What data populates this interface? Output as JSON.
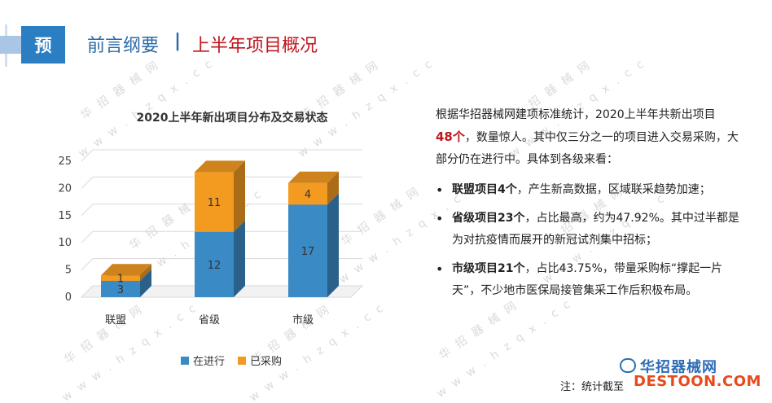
{
  "header": {
    "badge": "预",
    "section": "前言纲要",
    "separator": "|",
    "title": "上半年项目概况"
  },
  "chart_data": {
    "type": "bar",
    "stacked": true,
    "title": "2020上半年新出项目分布及交易状态",
    "categories": [
      "联盟",
      "省级",
      "市级"
    ],
    "series": [
      {
        "name": "在进行",
        "values": [
          3,
          12,
          17
        ],
        "color": "#3a8ac6"
      },
      {
        "name": "已采购",
        "values": [
          1,
          11,
          4
        ],
        "color": "#f39a21"
      }
    ],
    "y_ticks": [
      "0",
      "5",
      "10",
      "15",
      "20",
      "25"
    ],
    "ylim": [
      0,
      25
    ],
    "grid": true,
    "legend": "bottom"
  },
  "text": {
    "intro_a": "根据华招器械网建项标准统计，2020上半年共新出项目",
    "intro_highlight": "48个",
    "intro_b": "，数量惊人。其中仅三分之一的项目进入交易采购，大部分仍在进行中。具体到各级来看：",
    "items": [
      {
        "bold": "联盟项目4个",
        "rest": "，产生新高数据，区域联采趋势加速；"
      },
      {
        "bold": "省级项目23个",
        "rest": "，占比最高，约为47.92%。其中过半都是为对抗疫情而展开的新冠试剂集中招标；"
      },
      {
        "bold": "市级项目21个",
        "rest": "，占比43.75%，带量采购标“撑起一片天”，不少地市医保局接管集采工作后积极布局。"
      }
    ],
    "note": "注：统计截至"
  },
  "brand": {
    "cn": "华招器械网",
    "en": "DESTOON.COM"
  },
  "watermark": {
    "cn": "华 招 器 械 网",
    "url": "w w w . h z q x . c c"
  }
}
